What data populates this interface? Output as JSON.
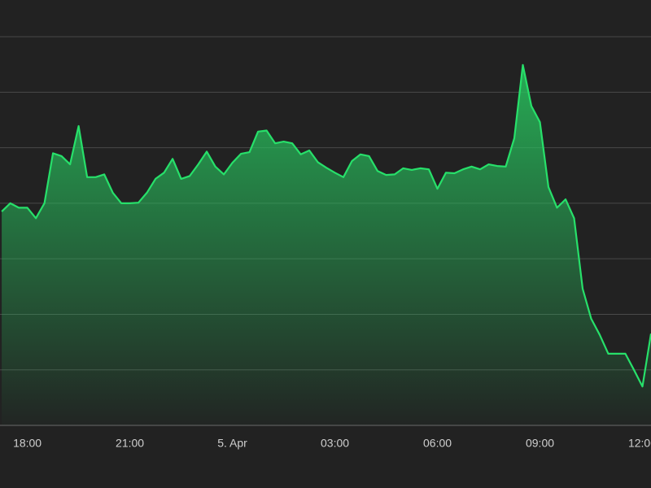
{
  "chart_data": {
    "type": "area",
    "x": [
      17.25,
      17.5,
      17.75,
      18,
      18.25,
      18.5,
      18.75,
      19,
      19.25,
      19.5,
      19.75,
      20,
      20.25,
      20.5,
      20.75,
      21,
      21.25,
      21.5,
      21.75,
      22,
      22.25,
      22.5,
      22.75,
      23,
      23.25,
      23.5,
      23.75,
      24,
      24.25,
      24.5,
      24.75,
      25,
      25.25,
      25.5,
      25.75,
      26,
      26.25,
      26.5,
      26.75,
      27,
      27.25,
      27.5,
      27.75,
      28,
      28.25,
      28.5,
      28.75,
      29,
      29.25,
      29.5,
      29.75,
      30,
      30.25,
      30.5,
      30.75,
      31,
      31.25,
      31.5,
      31.75,
      32,
      32.25,
      32.5,
      32.75,
      33,
      33.25,
      33.5,
      33.75,
      34,
      34.25,
      34.5,
      34.75,
      35,
      35.25,
      35.5,
      35.75,
      36,
      36.25
    ],
    "values": [
      3.85,
      4.0,
      3.92,
      3.92,
      3.73,
      4.0,
      4.9,
      4.85,
      4.7,
      5.39,
      4.47,
      4.47,
      4.52,
      4.19,
      4.0,
      4.0,
      4.01,
      4.19,
      4.44,
      4.55,
      4.8,
      4.44,
      4.49,
      4.7,
      4.93,
      4.66,
      4.52,
      4.73,
      4.89,
      4.92,
      5.29,
      5.31,
      5.08,
      5.11,
      5.08,
      4.88,
      4.95,
      4.74,
      4.64,
      4.55,
      4.47,
      4.76,
      4.88,
      4.85,
      4.58,
      4.51,
      4.52,
      4.63,
      4.6,
      4.63,
      4.61,
      4.26,
      4.55,
      4.54,
      4.61,
      4.66,
      4.61,
      4.7,
      4.67,
      4.66,
      5.17,
      6.49,
      5.75,
      5.46,
      4.29,
      3.92,
      4.07,
      3.73,
      2.46,
      1.92,
      1.63,
      1.29,
      1.29,
      1.29,
      1.0,
      0.7,
      1.65
    ],
    "color": "#27e06a",
    "xlim": [
      17.2,
      36.25
    ],
    "xticks": [
      {
        "value": 18,
        "label": "18:00"
      },
      {
        "value": 21,
        "label": "21:00"
      },
      {
        "value": 24,
        "label": "5. Apr"
      },
      {
        "value": 27,
        "label": "03:00"
      },
      {
        "value": 30,
        "label": "06:00"
      },
      {
        "value": 33,
        "label": "09:00"
      },
      {
        "value": 36,
        "label": "12:00"
      }
    ],
    "ylim": [
      0,
      7.66
    ],
    "yticks": [
      0,
      1,
      2,
      3,
      4,
      5,
      6,
      7
    ],
    "grid": true
  }
}
